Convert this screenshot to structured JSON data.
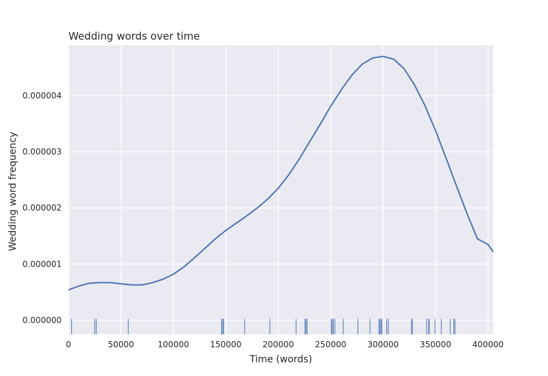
{
  "chart_data": {
    "type": "line",
    "title": "Wedding words over time",
    "xlabel": "Time (words)",
    "ylabel": "Wedding word frequency",
    "xlim": [
      0,
      405000
    ],
    "ylim": [
      -2.5e-07,
      4.9e-06
    ],
    "x_ticks": [
      0,
      50000,
      100000,
      150000,
      200000,
      250000,
      300000,
      350000,
      400000
    ],
    "x_tick_labels": [
      "0",
      "50000",
      "100000",
      "150000",
      "200000",
      "250000",
      "300000",
      "350000",
      "400000"
    ],
    "y_ticks": [
      0,
      1e-06,
      2e-06,
      3e-06,
      4e-06
    ],
    "y_tick_labels": [
      "0.000000",
      "0.000001",
      "0.000002",
      "0.000003",
      "0.000004"
    ],
    "grid": true,
    "colors": {
      "line": "#4c72b0",
      "background": "#eaeaf2",
      "grid": "#ffffff"
    },
    "series": [
      {
        "x": [
          0,
          10000,
          20000,
          30000,
          40000,
          50000,
          60000,
          70000,
          80000,
          90000,
          100000,
          110000,
          120000,
          130000,
          140000,
          150000,
          160000,
          170000,
          180000,
          190000,
          200000,
          210000,
          220000,
          230000,
          240000,
          250000,
          260000,
          270000,
          280000,
          290000,
          300000,
          310000,
          320000,
          330000,
          340000,
          350000,
          360000,
          370000,
          380000,
          390000,
          400000,
          405000
        ],
        "y": [
          5.4e-07,
          6.1e-07,
          6.6e-07,
          6.7e-07,
          6.7e-07,
          6.5e-07,
          6.3e-07,
          6.3e-07,
          6.7e-07,
          7.3e-07,
          8.2e-07,
          9.5e-07,
          1.11e-06,
          1.28e-06,
          1.45e-06,
          1.6e-06,
          1.73e-06,
          1.86e-06,
          2e-06,
          2.16e-06,
          2.35e-06,
          2.59e-06,
          2.87e-06,
          3.18e-06,
          3.49e-06,
          3.81e-06,
          4.1e-06,
          4.36e-06,
          4.56e-06,
          4.67e-06,
          4.7e-06,
          4.65e-06,
          4.48e-06,
          4.19e-06,
          3.82e-06,
          3.38e-06,
          2.89e-06,
          2.39e-06,
          1.9e-06,
          1.45e-06,
          1.35e-06,
          1.22e-06
        ]
      }
    ],
    "rug": [
      3000,
      25000,
      26500,
      57000,
      146000,
      147000,
      148000,
      168000,
      192000,
      217000,
      225500,
      226500,
      227500,
      250500,
      251500,
      252500,
      254000,
      262000,
      276000,
      287500,
      296000,
      297000,
      298000,
      299000,
      303500,
      305000,
      327000,
      328000,
      341500,
      343500,
      344000,
      349500,
      355500,
      364000,
      367500,
      368500
    ]
  }
}
